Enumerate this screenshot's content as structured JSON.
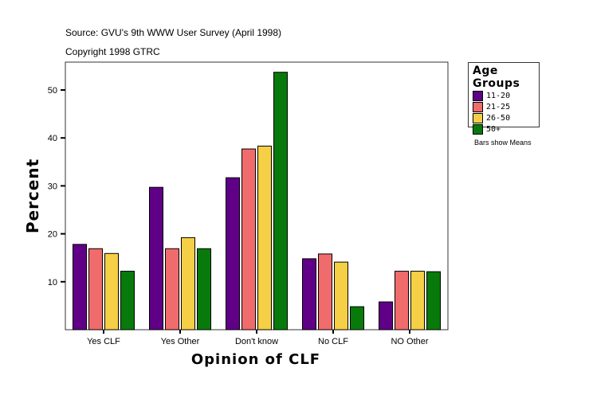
{
  "header": {
    "source": "Source: GVU's 9th WWW User Survey (April 1998)",
    "copyright": "Copyright 1998 GTRC"
  },
  "note": "Bars show Means",
  "chart_data": {
    "type": "bar",
    "title": "",
    "xlabel": "Opinion of CLF",
    "ylabel": "Percent",
    "ylim": [
      0,
      55.5
    ],
    "yticks": [
      10,
      20,
      30,
      40,
      50
    ],
    "grid": false,
    "legend_position": "right",
    "legend_title": "Age Groups",
    "categories": [
      "Yes CLF",
      "Yes Other",
      "Don't know",
      "No CLF",
      "NO Other"
    ],
    "series": [
      {
        "name": "11-20",
        "color": "#5f0087",
        "values": [
          17.8,
          29.7,
          31.7,
          14.8,
          5.8
        ]
      },
      {
        "name": "21-25",
        "color": "#f06b6b",
        "values": [
          16.9,
          16.9,
          37.7,
          15.8,
          12.2
        ]
      },
      {
        "name": "26-50",
        "color": "#f5cf45",
        "values": [
          15.9,
          19.2,
          38.3,
          14.1,
          12.2
        ]
      },
      {
        "name": "50+",
        "color": "#087a0c",
        "values": [
          12.2,
          16.9,
          53.7,
          4.8,
          12.1
        ]
      }
    ]
  }
}
